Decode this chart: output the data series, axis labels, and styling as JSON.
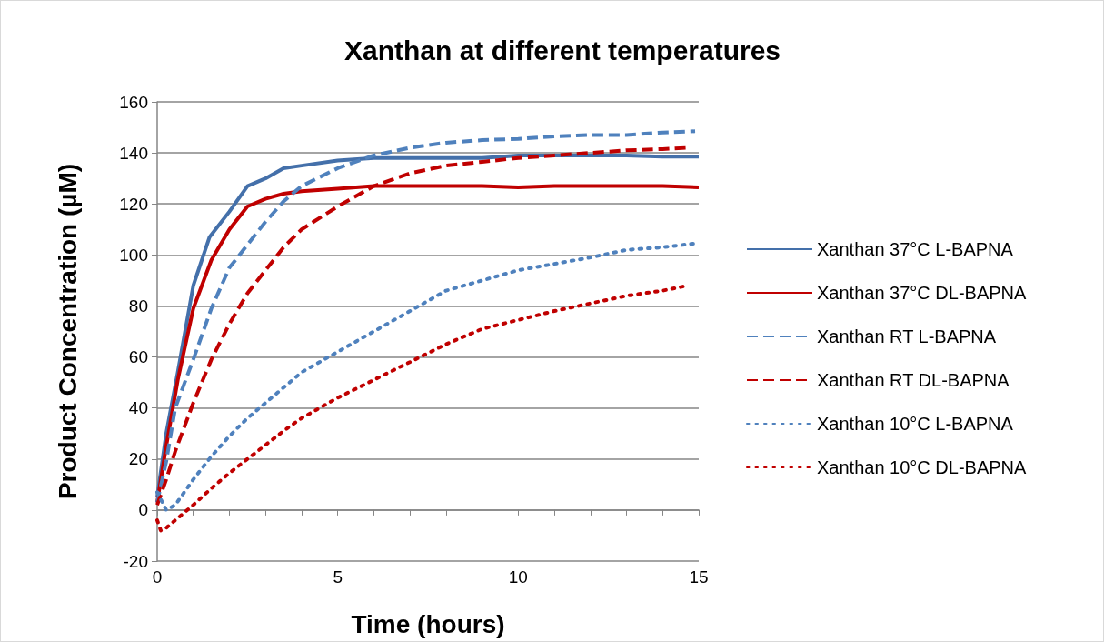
{
  "chart_data": {
    "type": "line",
    "title": "Xanthan at different temperatures",
    "xlabel": "Time (hours)",
    "ylabel": "Product Concentration (µM)",
    "xlim": [
      0,
      15
    ],
    "xticks": [
      0,
      {
        "value": 1,
        "label": null
      },
      {
        "value": 2,
        "label": null
      },
      {
        "value": 3,
        "label": null
      },
      {
        "value": 4,
        "label": null
      },
      5,
      {
        "value": 6,
        "label": null
      },
      {
        "value": 7,
        "label": null
      },
      {
        "value": 8,
        "label": null
      },
      {
        "value": 9,
        "label": null
      },
      10,
      {
        "value": 11,
        "label": null
      },
      {
        "value": 12,
        "label": null
      },
      {
        "value": 13,
        "label": null
      },
      {
        "value": 14,
        "label": null
      },
      15
    ],
    "ylim": [
      -20,
      160
    ],
    "yticks": [
      -20,
      0,
      20,
      40,
      60,
      80,
      100,
      120,
      140,
      160
    ],
    "grid": "y",
    "legend": "right",
    "marker": "none",
    "series": [
      {
        "name": "Xanthan 37°C L-BAPNA",
        "color": "#4470aa",
        "line_style": "solid",
        "x": [
          0,
          0.25,
          0.57,
          1,
          1.45,
          2,
          2.5,
          3,
          3.5,
          4,
          5,
          6,
          7,
          8,
          9,
          10,
          11,
          12,
          13,
          14,
          15
        ],
        "values": [
          5,
          30,
          54,
          88,
          107,
          117,
          127,
          130,
          134,
          135,
          137,
          138,
          138,
          138,
          138,
          139,
          139,
          139,
          139,
          138.5,
          138.5
        ]
      },
      {
        "name": "Xanthan 37°C DL-BAPNA",
        "color": "#c00000",
        "line_style": "solid",
        "x": [
          0,
          0.25,
          0.57,
          1,
          1.5,
          2,
          2.5,
          3,
          3.5,
          4,
          5,
          6,
          7,
          8,
          9,
          10,
          11,
          12,
          13,
          14,
          15
        ],
        "values": [
          3,
          25,
          51,
          79,
          98,
          110,
          119,
          122,
          124,
          125,
          126,
          127,
          127,
          127,
          127,
          126.5,
          127,
          127,
          127,
          127,
          126.5
        ]
      },
      {
        "name": "Xanthan RT L-BAPNA",
        "color": "#4f81bd",
        "line_style": "dashed",
        "x": [
          0,
          0.25,
          0.5,
          1,
          1.5,
          2,
          2.5,
          3,
          3.5,
          4,
          5,
          6,
          7,
          8,
          9,
          10,
          11,
          12,
          13,
          14,
          14.9
        ],
        "values": [
          3,
          19,
          40,
          59,
          79,
          95,
          104,
          113,
          121,
          127,
          134,
          139,
          142,
          144,
          145,
          145.5,
          146.5,
          147,
          147,
          148,
          148.5
        ]
      },
      {
        "name": "Xanthan RT DL-BAPNA",
        "color": "#c00000",
        "line_style": "dashed",
        "x": [
          0,
          0.25,
          0.5,
          1,
          1.5,
          2,
          2.5,
          3,
          3.5,
          4,
          5,
          6,
          7,
          8,
          9,
          10,
          11,
          12,
          13,
          14,
          14.7
        ],
        "values": [
          2,
          12,
          23,
          42,
          59,
          73,
          85,
          94,
          103,
          110,
          119,
          127,
          132,
          135,
          136.5,
          138,
          139,
          140,
          141,
          141.5,
          142
        ]
      },
      {
        "name": "Xanthan 10°C L-BAPNA",
        "color": "#4f81bd",
        "line_style": "dotted",
        "x": [
          0,
          0.25,
          0.5,
          1,
          1.5,
          2,
          2.5,
          3,
          3.5,
          4,
          5,
          6,
          7,
          8,
          9,
          10,
          11,
          12,
          13,
          14,
          14.9
        ],
        "values": [
          7,
          0,
          2,
          12,
          21,
          29,
          36,
          42,
          48,
          54,
          62,
          70,
          78,
          86,
          90,
          94,
          96.5,
          99,
          102,
          103,
          104.5
        ]
      },
      {
        "name": "Xanthan 10°C DL-BAPNA",
        "color": "#c00000",
        "line_style": "dotted",
        "x": [
          0,
          0.1,
          0.25,
          0.5,
          0.75,
          1,
          1.5,
          2,
          2.5,
          3,
          3.5,
          4,
          5,
          6,
          7,
          8,
          9,
          10,
          11,
          12,
          13,
          14,
          14.7
        ],
        "values": [
          -4,
          -8,
          -7,
          -4,
          -1,
          2,
          8.5,
          14.5,
          20,
          25.5,
          31,
          36,
          44,
          51,
          58,
          65,
          71,
          74.5,
          78,
          81,
          84,
          86,
          88
        ]
      }
    ]
  }
}
